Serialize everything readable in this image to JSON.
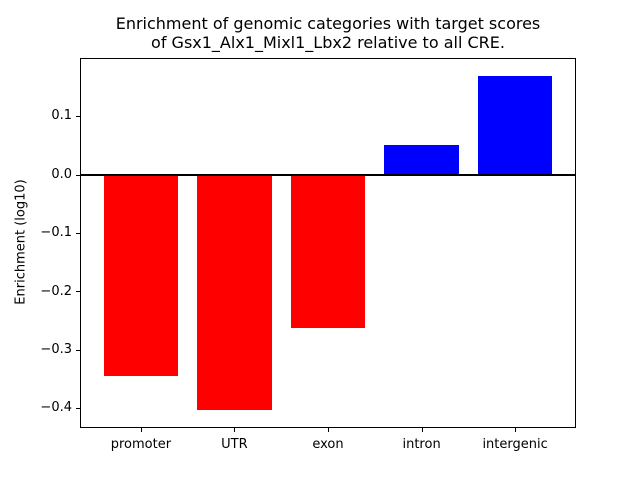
{
  "chart_data": {
    "type": "bar",
    "title": "Enrichment of genomic categories with target scores\nof Gsx1_Alx1_Mixl1_Lbx2 relative to all CRE.",
    "ylabel": "Enrichment (log10)",
    "xlabel": "",
    "categories": [
      "promoter",
      "UTR",
      "exon",
      "intron",
      "intergenic"
    ],
    "values": [
      -0.345,
      -0.403,
      -0.263,
      0.051,
      0.169
    ],
    "bar_colors": [
      "#ff0000",
      "#ff0000",
      "#ff0000",
      "#0000ff",
      "#0000ff"
    ],
    "color_meaning": {
      "negative_bars": "#ff0000",
      "positive_bars": "#0000ff"
    },
    "yticks": [
      0.1,
      0.0,
      -0.1,
      -0.2,
      -0.3,
      -0.4
    ],
    "ytick_labels": [
      "0.1",
      "0.0",
      "−0.1",
      "−0.2",
      "−0.3",
      "−0.4"
    ],
    "ylim": [
      -0.432,
      0.198
    ],
    "xlim": [
      -0.64,
      4.64
    ],
    "bar_width": 0.8,
    "grid": false,
    "legend": "none",
    "zero_line": true,
    "text_color": "#000000",
    "background": "#ffffff"
  }
}
